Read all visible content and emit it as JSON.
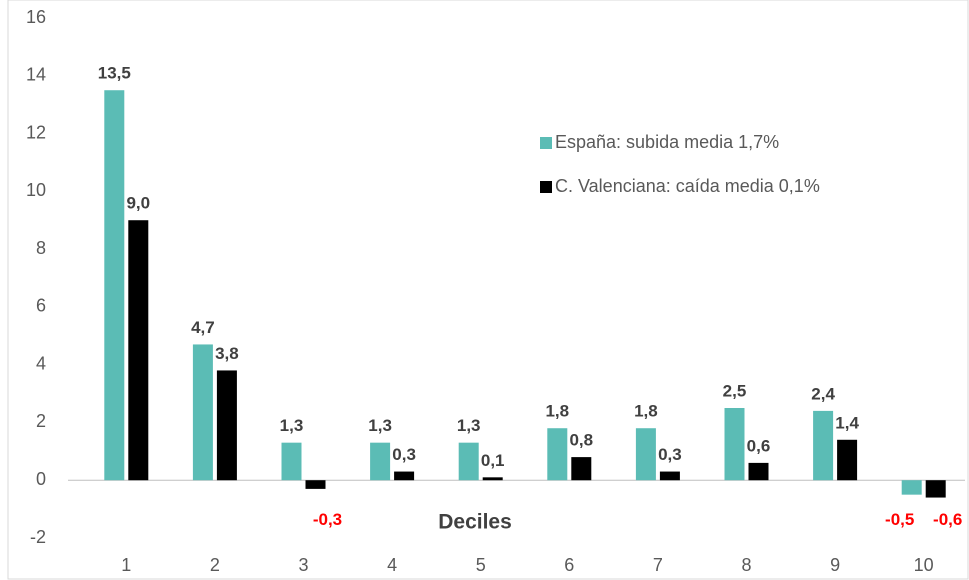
{
  "chart_data": {
    "type": "bar",
    "x_label": "Deciles",
    "categories": [
      "1",
      "2",
      "3",
      "4",
      "5",
      "6",
      "7",
      "8",
      "9",
      "10"
    ],
    "series": [
      {
        "name": "España: subida media 1,7%",
        "color": "#5bbcb5",
        "values": [
          13.5,
          4.7,
          1.3,
          1.3,
          1.3,
          1.8,
          1.8,
          2.5,
          2.4,
          -0.5
        ],
        "value_labels": [
          "13,5",
          "4,7",
          "1,3",
          "1,3",
          "1,3",
          "1,8",
          "1,8",
          "2,5",
          "2,4",
          "-0,5"
        ]
      },
      {
        "name": "C. Valenciana: caída media 0,1%",
        "color": "#000000",
        "values": [
          9.0,
          3.8,
          -0.3,
          0.3,
          0.1,
          0.8,
          0.3,
          0.6,
          1.4,
          -0.6
        ],
        "value_labels": [
          "9,0",
          "3,8",
          "-0,3",
          "0,3",
          "0,1",
          "0,8",
          "0,3",
          "0,6",
          "1,4",
          "-0,6"
        ]
      }
    ],
    "negative_label_color": "#ff0000",
    "ylim": [
      -2,
      16
    ],
    "yticks": [
      -2,
      0,
      2,
      4,
      6,
      8,
      10,
      12,
      14,
      16
    ],
    "grid": false,
    "legend": "upper right"
  }
}
